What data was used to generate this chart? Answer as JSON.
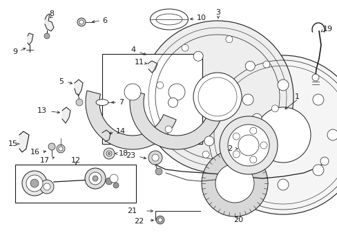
{
  "background_color": "#ffffff",
  "line_color": "#1a1a1a",
  "fig_w": 4.89,
  "fig_h": 3.6,
  "dpi": 100
}
